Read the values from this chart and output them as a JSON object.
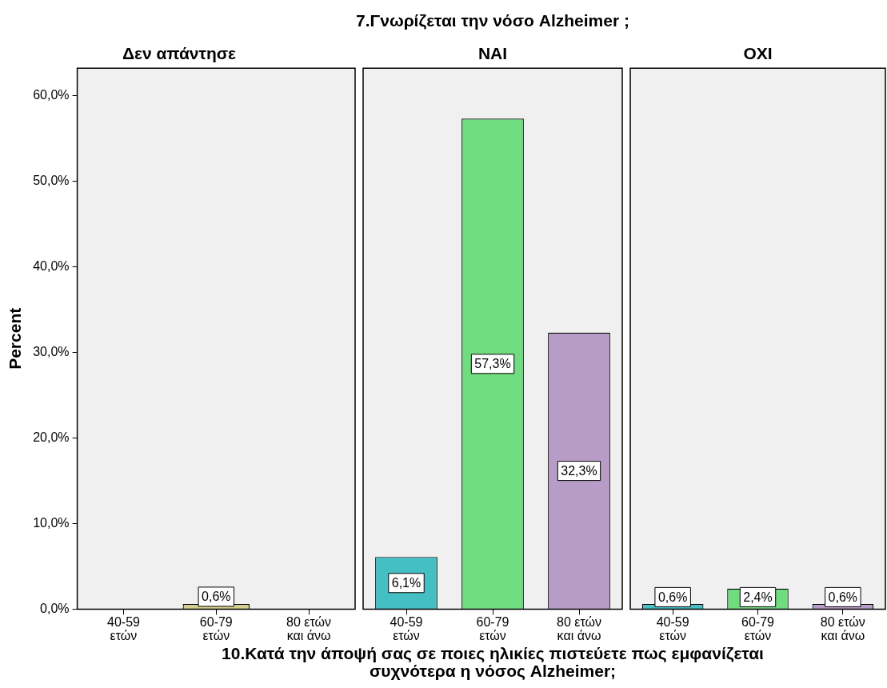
{
  "chart_data": [
    {
      "type": "bar",
      "subtitle": "Δεν απάντησε",
      "ylabel": "Percent",
      "categories": [
        "40-59 ετών",
        "60-79 ετών",
        "80 ετών και άνω"
      ],
      "values": [
        null,
        0.6,
        null
      ],
      "colors": [
        "#44bfc4",
        "#d6d08f",
        "#b89cc8"
      ],
      "value_labels": [
        null,
        "0,6%",
        null
      ],
      "ylim": [
        0,
        63.2
      ],
      "yticks": [
        {
          "value": 0,
          "label": "0,0%"
        },
        {
          "value": 10,
          "label": "10,0%"
        },
        {
          "value": 20,
          "label": "20,0%"
        },
        {
          "value": 30,
          "label": "30,0%"
        },
        {
          "value": 40,
          "label": "40,0%"
        },
        {
          "value": 50,
          "label": "50,0%"
        },
        {
          "value": 60,
          "label": "60,0%"
        }
      ],
      "grid": false,
      "legend": false
    },
    {
      "type": "bar",
      "title": "7.Γνωρίζεται την νόσο Alzheimer ;",
      "subtitle": "ΝΑΙ",
      "xlabel": "10.Κατά την άποψή σας σε ποιες ηλικίες πιστεύετε πως εμφανίζεται συχνότερα η νόσος Alzheimer;",
      "categories": [
        "40-59 ετών",
        "60-79 ετών",
        "80 ετών και άνω"
      ],
      "values": [
        6.1,
        57.3,
        32.3
      ],
      "colors": [
        "#44bfc4",
        "#6fdc7f",
        "#b89cc8"
      ],
      "value_labels": [
        "6,1%",
        "57,3%",
        "32,3%"
      ],
      "ylim": [
        0,
        63.2
      ],
      "tick_labels": "x",
      "grid": false,
      "legend": false
    },
    {
      "type": "bar",
      "subtitle": "ΟΧΙ",
      "categories": [
        "40-59 ετών",
        "60-79 ετών",
        "80 ετών και άνω"
      ],
      "values": [
        0.6,
        2.4,
        0.6
      ],
      "colors": [
        "#44bfc4",
        "#6fdc7f",
        "#b89cc8"
      ],
      "value_labels": [
        "0,6%",
        "2,4%",
        "0,6%"
      ],
      "ylim": [
        0,
        63.2
      ],
      "tick_labels": "x",
      "grid": false,
      "legend": false
    }
  ]
}
